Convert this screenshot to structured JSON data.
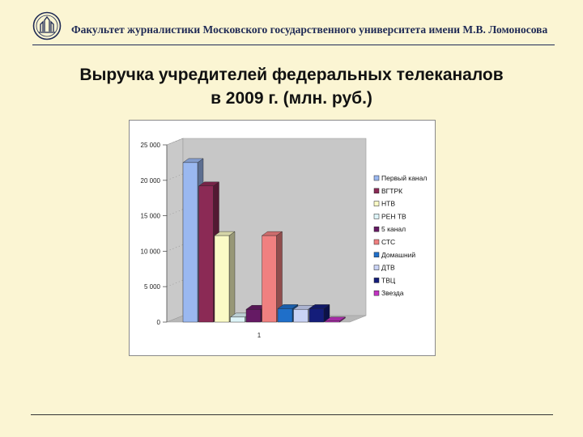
{
  "header": {
    "text": "Факультет журналистики Московского государственного университета имени М.В. Ломоносова",
    "logo_icon": "msu-emblem-icon"
  },
  "title": {
    "line1": "Выручка учредителей федеральных телеканалов",
    "line2": "в 2009 г. (млн. руб.)"
  },
  "chart_data": {
    "type": "bar",
    "categories": [
      "1"
    ],
    "ylim": [
      0,
      25000
    ],
    "yticks": [
      {
        "value": 0,
        "label": "0"
      },
      {
        "value": 5000,
        "label": "5 000"
      },
      {
        "value": 10000,
        "label": "10 000"
      },
      {
        "value": 15000,
        "label": "15 000"
      },
      {
        "value": 20000,
        "label": "20 000"
      },
      {
        "value": 25000,
        "label": "25 000"
      }
    ],
    "legend_position": "right",
    "grid": false,
    "series": [
      {
        "name": "Первый канал",
        "values": [
          22500
        ],
        "color": "#9ab8f0"
      },
      {
        "name": "ВГТРК",
        "values": [
          19200
        ],
        "color": "#8b2a55"
      },
      {
        "name": "НТВ",
        "values": [
          12200
        ],
        "color": "#fbfbc6"
      },
      {
        "name": "РЕН ТВ",
        "values": [
          700
        ],
        "color": "#ddf4f8"
      },
      {
        "name": "5 канал",
        "values": [
          1800
        ],
        "color": "#651a64"
      },
      {
        "name": "СТС",
        "values": [
          12200
        ],
        "color": "#f08080"
      },
      {
        "name": "Домашний",
        "values": [
          1900
        ],
        "color": "#1f6fc9"
      },
      {
        "name": "ДТВ",
        "values": [
          1800
        ],
        "color": "#c9d3f5"
      },
      {
        "name": "ТВЦ",
        "values": [
          1900
        ],
        "color": "#141d7a"
      },
      {
        "name": "Звезда",
        "values": [
          150
        ],
        "color": "#c233c2"
      }
    ]
  }
}
